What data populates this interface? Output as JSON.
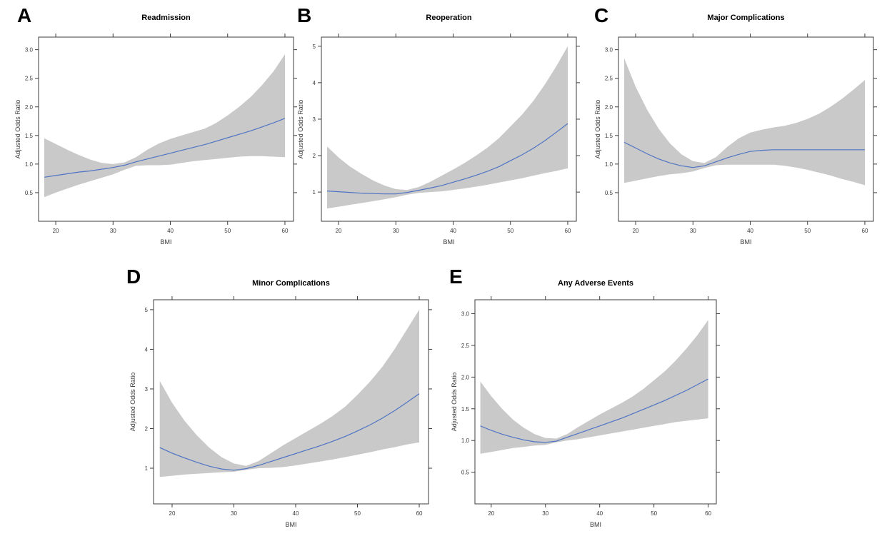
{
  "figure_title": "Adjusted odds ratio spline panels",
  "colors": {
    "line": "#4f74c4",
    "band": "#c9c9c9",
    "axis": "#3c3c3c",
    "tick_label": "#3a3a3a",
    "title_text": "#000000",
    "background": "#ffffff"
  },
  "chart_data": [
    {
      "type": "line",
      "panel": "A",
      "title": "Readmission",
      "xlabel": "BMI",
      "ylabel": "Adjusted Odds Ratio",
      "legend_position": "none",
      "grid": false,
      "xlim": [
        17,
        61.5
      ],
      "ylim": [
        0.0,
        3.22
      ],
      "xtick_values": [
        20,
        30,
        40,
        50,
        60
      ],
      "xtick_labels": [
        "20",
        "30",
        "40",
        "50",
        "60"
      ],
      "ytick_values": [
        0.5,
        1.0,
        1.5,
        2.0,
        2.5,
        3.0
      ],
      "ytick_labels": [
        "0.5",
        "1.0",
        "1.5",
        "2.0",
        "2.5",
        "3.0"
      ],
      "x": [
        18,
        20,
        22,
        24,
        26,
        28,
        30,
        32,
        34,
        36,
        38,
        40,
        42,
        44,
        46,
        48,
        50,
        52,
        54,
        56,
        58,
        60
      ],
      "series": [
        {
          "name": "Adjusted odds ratio",
          "values": [
            0.77,
            0.8,
            0.83,
            0.86,
            0.88,
            0.91,
            0.94,
            0.98,
            1.04,
            1.09,
            1.14,
            1.19,
            1.24,
            1.29,
            1.34,
            1.4,
            1.46,
            1.52,
            1.58,
            1.65,
            1.72,
            1.8
          ]
        },
        {
          "name": "95% CI lower",
          "values": [
            0.42,
            0.5,
            0.57,
            0.64,
            0.7,
            0.76,
            0.82,
            0.9,
            0.97,
            0.98,
            0.98,
            0.99,
            1.02,
            1.05,
            1.07,
            1.09,
            1.11,
            1.13,
            1.14,
            1.14,
            1.13,
            1.12
          ]
        },
        {
          "name": "95% CI upper",
          "values": [
            1.45,
            1.35,
            1.25,
            1.16,
            1.08,
            1.02,
            1.0,
            1.03,
            1.12,
            1.25,
            1.36,
            1.44,
            1.5,
            1.56,
            1.62,
            1.72,
            1.85,
            2.0,
            2.17,
            2.38,
            2.62,
            2.92
          ]
        }
      ]
    },
    {
      "type": "line",
      "panel": "B",
      "title": "Reoperation",
      "xlabel": "BMI",
      "ylabel": "Adjusted Odds Ratio",
      "legend_position": "none",
      "grid": false,
      "xlim": [
        17,
        61.5
      ],
      "ylim": [
        0.2,
        5.25
      ],
      "xtick_values": [
        20,
        30,
        40,
        50,
        60
      ],
      "xtick_labels": [
        "20",
        "30",
        "40",
        "50",
        "60"
      ],
      "ytick_values": [
        1,
        2,
        3,
        4,
        5
      ],
      "ytick_labels": [
        "1",
        "2",
        "3",
        "4",
        "5"
      ],
      "x": [
        18,
        20,
        22,
        24,
        26,
        28,
        30,
        32,
        34,
        36,
        38,
        40,
        42,
        44,
        46,
        48,
        50,
        52,
        54,
        56,
        58,
        60
      ],
      "series": [
        {
          "name": "Adjusted odds ratio",
          "values": [
            1.03,
            1.01,
            0.99,
            0.97,
            0.96,
            0.95,
            0.95,
            0.99,
            1.05,
            1.11,
            1.18,
            1.27,
            1.36,
            1.46,
            1.57,
            1.7,
            1.86,
            2.02,
            2.2,
            2.41,
            2.64,
            2.88
          ]
        },
        {
          "name": "95% CI lower",
          "values": [
            0.55,
            0.6,
            0.65,
            0.7,
            0.75,
            0.8,
            0.86,
            0.93,
            0.98,
            1.0,
            1.02,
            1.06,
            1.1,
            1.15,
            1.2,
            1.26,
            1.32,
            1.38,
            1.45,
            1.52,
            1.58,
            1.65
          ]
        },
        {
          "name": "95% CI upper",
          "values": [
            2.25,
            1.95,
            1.7,
            1.5,
            1.32,
            1.18,
            1.08,
            1.06,
            1.14,
            1.28,
            1.45,
            1.62,
            1.8,
            2.0,
            2.22,
            2.48,
            2.8,
            3.12,
            3.5,
            3.95,
            4.45,
            5.0
          ]
        }
      ]
    },
    {
      "type": "line",
      "panel": "C",
      "title": "Major Complications",
      "xlabel": "BMI",
      "ylabel": "Adjusted Odds Ratio",
      "legend_position": "none",
      "grid": false,
      "xlim": [
        17,
        61.5
      ],
      "ylim": [
        0.0,
        3.22
      ],
      "xtick_values": [
        20,
        30,
        40,
        50,
        60
      ],
      "xtick_labels": [
        "20",
        "30",
        "40",
        "50",
        "60"
      ],
      "ytick_values": [
        0.5,
        1.0,
        1.5,
        2.0,
        2.5,
        3.0
      ],
      "ytick_labels": [
        "0.5",
        "1.0",
        "1.5",
        "2.0",
        "2.5",
        "3.0"
      ],
      "x": [
        18,
        20,
        22,
        24,
        26,
        28,
        30,
        32,
        34,
        36,
        38,
        40,
        42,
        44,
        46,
        48,
        50,
        52,
        54,
        56,
        58,
        60
      ],
      "series": [
        {
          "name": "Adjusted odds ratio",
          "values": [
            1.38,
            1.28,
            1.18,
            1.09,
            1.02,
            0.97,
            0.94,
            0.97,
            1.04,
            1.11,
            1.17,
            1.22,
            1.24,
            1.25,
            1.25,
            1.25,
            1.25,
            1.25,
            1.25,
            1.25,
            1.25,
            1.25
          ]
        },
        {
          "name": "95% CI lower",
          "values": [
            0.67,
            0.71,
            0.75,
            0.79,
            0.82,
            0.84,
            0.87,
            0.93,
            0.98,
            0.99,
            0.99,
            0.99,
            0.99,
            0.99,
            0.97,
            0.94,
            0.9,
            0.85,
            0.8,
            0.74,
            0.69,
            0.63
          ]
        },
        {
          "name": "95% CI upper",
          "values": [
            2.85,
            2.35,
            1.95,
            1.62,
            1.36,
            1.17,
            1.05,
            1.02,
            1.12,
            1.3,
            1.45,
            1.55,
            1.6,
            1.64,
            1.67,
            1.72,
            1.79,
            1.88,
            2.0,
            2.14,
            2.3,
            2.47
          ]
        }
      ]
    },
    {
      "type": "line",
      "panel": "D",
      "title": "Minor Complications",
      "xlabel": "BMI",
      "ylabel": "Adjusted Odds Ratio",
      "legend_position": "none",
      "grid": false,
      "xlim": [
        17,
        61.5
      ],
      "ylim": [
        0.1,
        5.25
      ],
      "xtick_values": [
        20,
        30,
        40,
        50,
        60
      ],
      "xtick_labels": [
        "20",
        "30",
        "40",
        "50",
        "60"
      ],
      "ytick_values": [
        1,
        2,
        3,
        4,
        5
      ],
      "ytick_labels": [
        "1",
        "2",
        "3",
        "4",
        "5"
      ],
      "x": [
        18,
        20,
        22,
        24,
        26,
        28,
        30,
        32,
        34,
        36,
        38,
        40,
        42,
        44,
        46,
        48,
        50,
        52,
        54,
        56,
        58,
        60
      ],
      "series": [
        {
          "name": "Adjusted odds ratio",
          "values": [
            1.52,
            1.38,
            1.26,
            1.15,
            1.05,
            0.98,
            0.95,
            0.99,
            1.07,
            1.17,
            1.27,
            1.37,
            1.47,
            1.57,
            1.68,
            1.8,
            1.94,
            2.09,
            2.26,
            2.45,
            2.66,
            2.88
          ]
        },
        {
          "name": "95% CI lower",
          "values": [
            0.78,
            0.81,
            0.84,
            0.86,
            0.88,
            0.9,
            0.91,
            0.96,
            1.0,
            1.01,
            1.03,
            1.07,
            1.12,
            1.17,
            1.22,
            1.28,
            1.34,
            1.4,
            1.47,
            1.53,
            1.6,
            1.65
          ]
        },
        {
          "name": "95% CI upper",
          "values": [
            3.2,
            2.65,
            2.2,
            1.83,
            1.52,
            1.28,
            1.12,
            1.06,
            1.18,
            1.38,
            1.58,
            1.76,
            1.94,
            2.12,
            2.32,
            2.55,
            2.85,
            3.18,
            3.55,
            4.0,
            4.5,
            5.0
          ]
        }
      ]
    },
    {
      "type": "line",
      "panel": "E",
      "title": "Any Adverse Events",
      "xlabel": "BMI",
      "ylabel": "Adjusted Odds Ratio",
      "legend_position": "none",
      "grid": false,
      "xlim": [
        17,
        61.5
      ],
      "ylim": [
        0.0,
        3.22
      ],
      "xtick_values": [
        20,
        30,
        40,
        50,
        60
      ],
      "xtick_labels": [
        "20",
        "30",
        "40",
        "50",
        "60"
      ],
      "ytick_values": [
        0.5,
        1.0,
        1.5,
        2.0,
        2.5,
        3.0
      ],
      "ytick_labels": [
        "0.5",
        "1.0",
        "1.5",
        "2.0",
        "2.5",
        "3.0"
      ],
      "x": [
        18,
        20,
        22,
        24,
        26,
        28,
        30,
        32,
        34,
        36,
        38,
        40,
        42,
        44,
        46,
        48,
        50,
        52,
        54,
        56,
        58,
        60
      ],
      "series": [
        {
          "name": "Adjusted odds ratio",
          "values": [
            1.23,
            1.16,
            1.1,
            1.05,
            1.01,
            0.98,
            0.97,
            0.99,
            1.05,
            1.11,
            1.17,
            1.23,
            1.29,
            1.35,
            1.42,
            1.49,
            1.56,
            1.63,
            1.71,
            1.79,
            1.88,
            1.97
          ]
        },
        {
          "name": "95% CI lower",
          "values": [
            0.79,
            0.82,
            0.85,
            0.88,
            0.9,
            0.92,
            0.93,
            0.97,
            1.0,
            1.02,
            1.05,
            1.08,
            1.11,
            1.14,
            1.17,
            1.2,
            1.23,
            1.26,
            1.29,
            1.31,
            1.33,
            1.35
          ]
        },
        {
          "name": "95% CI upper",
          "values": [
            1.93,
            1.7,
            1.5,
            1.33,
            1.2,
            1.1,
            1.04,
            1.03,
            1.1,
            1.21,
            1.31,
            1.41,
            1.5,
            1.59,
            1.69,
            1.81,
            1.95,
            2.09,
            2.26,
            2.45,
            2.66,
            2.9
          ]
        }
      ]
    }
  ]
}
